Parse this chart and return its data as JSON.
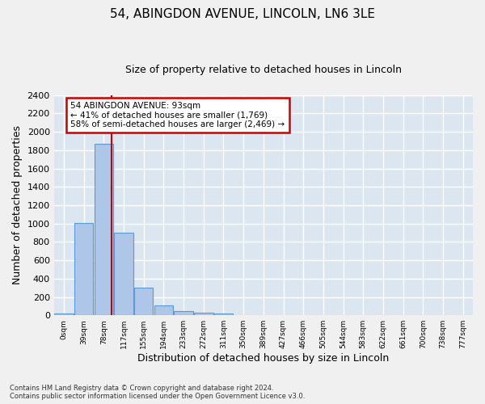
{
  "title": "54, ABINGDON AVENUE, LINCOLN, LN6 3LE",
  "subtitle": "Size of property relative to detached houses in Lincoln",
  "xlabel": "Distribution of detached houses by size in Lincoln",
  "ylabel": "Number of detached properties",
  "bar_labels": [
    "0sqm",
    "39sqm",
    "78sqm",
    "117sqm",
    "155sqm",
    "194sqm",
    "233sqm",
    "272sqm",
    "311sqm",
    "350sqm",
    "389sqm",
    "427sqm",
    "466sqm",
    "505sqm",
    "544sqm",
    "583sqm",
    "622sqm",
    "661sqm",
    "700sqm",
    "738sqm",
    "777sqm"
  ],
  "bar_values": [
    20,
    1005,
    1870,
    900,
    305,
    105,
    50,
    32,
    20,
    0,
    0,
    0,
    0,
    0,
    0,
    0,
    0,
    0,
    0,
    0,
    0
  ],
  "bar_color": "#aec6e8",
  "bar_edge_color": "#5b9bd5",
  "background_color": "#dce6f1",
  "grid_color": "#ffffff",
  "annotation_text": "54 ABINGDON AVENUE: 93sqm\n← 41% of detached houses are smaller (1,769)\n58% of semi-detached houses are larger (2,469) →",
  "vline_color": "#cc0000",
  "annotation_box_color": "#cc0000",
  "ylim": [
    0,
    2400
  ],
  "yticks": [
    0,
    200,
    400,
    600,
    800,
    1000,
    1200,
    1400,
    1600,
    1800,
    2000,
    2200,
    2400
  ],
  "footer_line1": "Contains HM Land Registry data © Crown copyright and database right 2024.",
  "footer_line2": "Contains public sector information licensed under the Open Government Licence v3.0.",
  "title_fontsize": 11,
  "subtitle_fontsize": 9,
  "xlabel_fontsize": 9,
  "ylabel_fontsize": 9,
  "fig_facecolor": "#f0f0f0"
}
